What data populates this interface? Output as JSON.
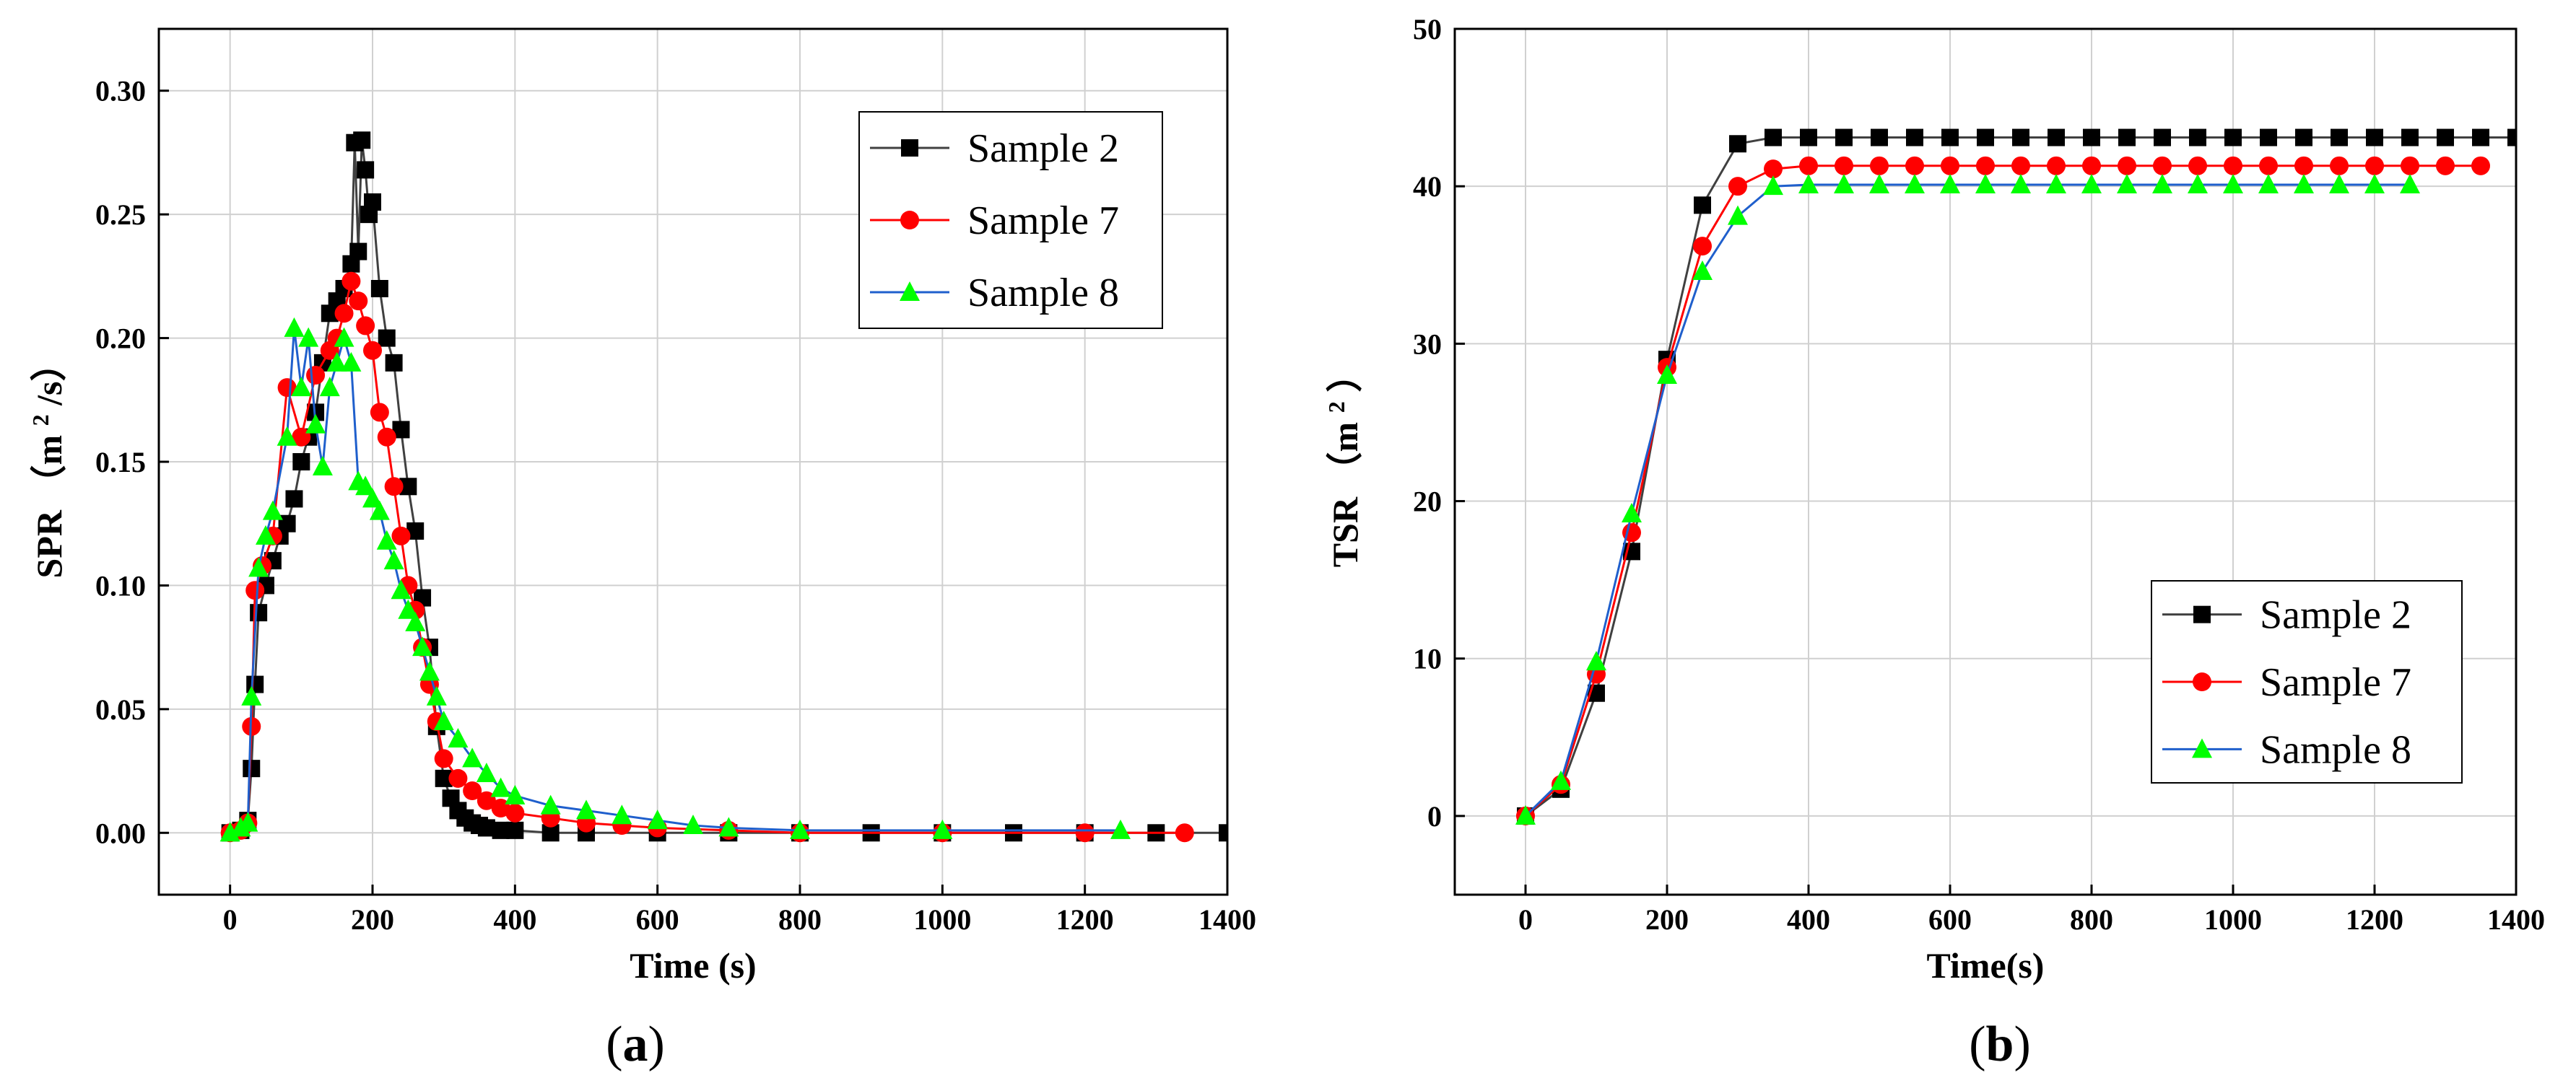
{
  "chart_data": [
    {
      "type": "line",
      "panel_label": {
        "open": "(",
        "letter": "a",
        "close": ")"
      },
      "title": "",
      "xlabel": "Time (s)",
      "ylabel": {
        "main": "SPR",
        "unit_open": "（m",
        "unit_sup": "2",
        "unit_close": "/s）"
      },
      "xlim": [
        -100,
        1400
      ],
      "ylim": [
        -0.025,
        0.325
      ],
      "xticks": [
        0,
        200,
        400,
        600,
        800,
        1000,
        1200,
        1400
      ],
      "xtick_labels": [
        "0",
        "200",
        "400",
        "600",
        "800",
        "1000",
        "1200",
        "1400"
      ],
      "yticks": [
        0,
        0.05,
        0.1,
        0.15,
        0.2,
        0.25,
        0.3
      ],
      "ytick_labels": [
        "0.00",
        "0.05",
        "0.10",
        "0.15",
        "0.20",
        "0.25",
        "0.30"
      ],
      "grid": true,
      "legend_position": "top-right",
      "series": [
        {
          "name": "Sample 2",
          "line_color": "#404040",
          "marker": "square",
          "marker_color": "#000000",
          "x": [
            0,
            15,
            25,
            30,
            35,
            40,
            50,
            60,
            70,
            80,
            90,
            100,
            110,
            120,
            130,
            140,
            150,
            160,
            170,
            175,
            180,
            185,
            190,
            195,
            200,
            210,
            220,
            230,
            240,
            250,
            260,
            270,
            280,
            290,
            300,
            310,
            320,
            330,
            340,
            350,
            360,
            380,
            400,
            450,
            500,
            600,
            700,
            800,
            900,
            1000,
            1100,
            1200,
            1300,
            1400
          ],
          "y": [
            0,
            0.001,
            0.005,
            0.026,
            0.06,
            0.089,
            0.1,
            0.11,
            0.12,
            0.125,
            0.135,
            0.15,
            0.16,
            0.17,
            0.19,
            0.21,
            0.215,
            0.22,
            0.23,
            0.279,
            0.235,
            0.28,
            0.268,
            0.25,
            0.255,
            0.22,
            0.2,
            0.19,
            0.163,
            0.14,
            0.122,
            0.095,
            0.075,
            0.043,
            0.022,
            0.014,
            0.009,
            0.006,
            0.004,
            0.003,
            0.002,
            0.001,
            0.001,
            0,
            0,
            0,
            0,
            0,
            0,
            0,
            0,
            0,
            0,
            0
          ]
        },
        {
          "name": "Sample 7",
          "line_color": "#ff0000",
          "marker": "circle",
          "marker_color": "#ff0000",
          "x": [
            0,
            15,
            25,
            30,
            35,
            45,
            60,
            80,
            100,
            120,
            140,
            150,
            160,
            170,
            180,
            190,
            200,
            210,
            220,
            230,
            240,
            250,
            260,
            270,
            280,
            290,
            300,
            320,
            340,
            360,
            380,
            400,
            450,
            500,
            550,
            600,
            700,
            800,
            1000,
            1200,
            1340
          ],
          "y": [
            0,
            0.001,
            0.004,
            0.043,
            0.098,
            0.108,
            0.12,
            0.18,
            0.16,
            0.185,
            0.195,
            0.2,
            0.21,
            0.223,
            0.215,
            0.205,
            0.195,
            0.17,
            0.16,
            0.14,
            0.12,
            0.1,
            0.09,
            0.075,
            0.06,
            0.045,
            0.03,
            0.022,
            0.017,
            0.013,
            0.01,
            0.008,
            0.006,
            0.004,
            0.003,
            0.002,
            0.001,
            0,
            0,
            0,
            0
          ]
        },
        {
          "name": "Sample 8",
          "line_color": "#1f5fcc",
          "marker": "triangle",
          "marker_color": "#00ff00",
          "x": [
            0,
            15,
            25,
            30,
            40,
            50,
            60,
            80,
            90,
            100,
            110,
            120,
            130,
            140,
            150,
            160,
            170,
            180,
            190,
            200,
            210,
            220,
            230,
            240,
            250,
            260,
            270,
            280,
            290,
            300,
            320,
            340,
            360,
            380,
            400,
            450,
            500,
            550,
            600,
            650,
            700,
            800,
            1000,
            1250
          ],
          "y": [
            0,
            0.002,
            0.004,
            0.055,
            0.107,
            0.12,
            0.13,
            0.16,
            0.204,
            0.18,
            0.2,
            0.165,
            0.148,
            0.18,
            0.19,
            0.2,
            0.19,
            0.142,
            0.14,
            0.135,
            0.13,
            0.118,
            0.11,
            0.098,
            0.09,
            0.085,
            0.075,
            0.065,
            0.055,
            0.045,
            0.038,
            0.03,
            0.024,
            0.018,
            0.015,
            0.011,
            0.009,
            0.007,
            0.005,
            0.003,
            0.002,
            0.001,
            0.001,
            0.001
          ]
        }
      ]
    },
    {
      "type": "line",
      "panel_label": {
        "open": "(",
        "letter": "b",
        "close": ")"
      },
      "title": "",
      "xlabel": "Time(s)",
      "ylabel": {
        "main": "TSR",
        "unit_open": "（m",
        "unit_sup": "2",
        "unit_close": "）"
      },
      "xlim": [
        -100,
        1400
      ],
      "ylim": [
        -5,
        50
      ],
      "xticks": [
        0,
        200,
        400,
        600,
        800,
        1000,
        1200,
        1400
      ],
      "xtick_labels": [
        "0",
        "200",
        "400",
        "600",
        "800",
        "1000",
        "1200",
        "1400"
      ],
      "yticks": [
        0,
        10,
        20,
        30,
        40,
        50
      ],
      "ytick_labels": [
        "0",
        "10",
        "20",
        "30",
        "40",
        "50"
      ],
      "grid": true,
      "legend_position": "bottom-right",
      "series": [
        {
          "name": "Sample 2",
          "line_color": "#404040",
          "marker": "square",
          "marker_color": "#000000",
          "x": [
            0,
            50,
            100,
            150,
            200,
            250,
            300,
            350,
            400,
            450,
            500,
            550,
            600,
            650,
            700,
            750,
            800,
            850,
            900,
            950,
            1000,
            1050,
            1100,
            1150,
            1200,
            1250,
            1300,
            1350,
            1400
          ],
          "y": [
            0,
            1.7,
            7.8,
            16.8,
            29,
            38.8,
            42.7,
            43.1,
            43.1,
            43.1,
            43.1,
            43.1,
            43.1,
            43.1,
            43.1,
            43.1,
            43.1,
            43.1,
            43.1,
            43.1,
            43.1,
            43.1,
            43.1,
            43.1,
            43.1,
            43.1,
            43.1,
            43.1,
            43.1
          ]
        },
        {
          "name": "Sample 7",
          "line_color": "#ff0000",
          "marker": "circle",
          "marker_color": "#ff0000",
          "x": [
            0,
            50,
            100,
            150,
            200,
            250,
            300,
            350,
            400,
            450,
            500,
            550,
            600,
            650,
            700,
            750,
            800,
            850,
            900,
            950,
            1000,
            1050,
            1100,
            1150,
            1200,
            1250,
            1300,
            1350
          ],
          "y": [
            0,
            2,
            9,
            18,
            28.5,
            36.2,
            40,
            41.1,
            41.3,
            41.3,
            41.3,
            41.3,
            41.3,
            41.3,
            41.3,
            41.3,
            41.3,
            41.3,
            41.3,
            41.3,
            41.3,
            41.3,
            41.3,
            41.3,
            41.3,
            41.3,
            41.3,
            41.3
          ]
        },
        {
          "name": "Sample 8",
          "line_color": "#1f5fcc",
          "marker": "triangle",
          "marker_color": "#00ff00",
          "x": [
            0,
            50,
            100,
            150,
            200,
            250,
            300,
            350,
            400,
            450,
            500,
            550,
            600,
            650,
            700,
            750,
            800,
            850,
            900,
            950,
            1000,
            1050,
            1100,
            1150,
            1200,
            1250
          ],
          "y": [
            0,
            2.2,
            9.8,
            19.2,
            28,
            34.6,
            38.1,
            40,
            40.1,
            40.1,
            40.1,
            40.1,
            40.1,
            40.1,
            40.1,
            40.1,
            40.1,
            40.1,
            40.1,
            40.1,
            40.1,
            40.1,
            40.1,
            40.1,
            40.1,
            40.1
          ]
        }
      ]
    }
  ]
}
